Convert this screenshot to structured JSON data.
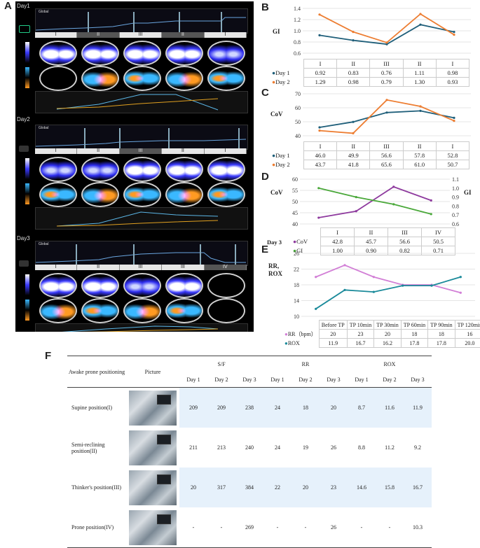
{
  "letters": {
    "a": "A",
    "b": "B",
    "c": "C",
    "d": "D",
    "e": "E",
    "f": "F"
  },
  "panelA": {
    "days": [
      "Day1",
      "Day2",
      "Day3"
    ],
    "global_label": "Global",
    "roi_days12": [
      "I",
      "II",
      "III",
      "II",
      "I"
    ],
    "roi_day3": [
      "I",
      "II",
      "III",
      "III",
      "IV"
    ]
  },
  "chart_data": [
    {
      "id": "B",
      "type": "line",
      "ylabel": "GI",
      "categories": [
        "I",
        "II",
        "III",
        "II",
        "I"
      ],
      "ylim": [
        0.6,
        1.4
      ],
      "yticks": [
        "0.6",
        "0.8",
        "1.0",
        "1.2",
        "1.4"
      ],
      "series": [
        {
          "name": "Day 1",
          "color": "#1f5f7a",
          "values": [
            0.92,
            0.83,
            0.76,
            1.11,
            0.98
          ],
          "labels": [
            "0.92",
            "0.83",
            "0.76",
            "1.11",
            "0.98"
          ]
        },
        {
          "name": "Day 2",
          "color": "#ed7d31",
          "values": [
            1.29,
            0.98,
            0.79,
            1.3,
            0.93
          ],
          "labels": [
            "1.29",
            "0.98",
            "0.79",
            "1.30",
            "0.93"
          ]
        }
      ]
    },
    {
      "id": "C",
      "type": "line",
      "ylabel": "CoV",
      "categories": [
        "I",
        "II",
        "III",
        "II",
        "I"
      ],
      "ylim": [
        40,
        70
      ],
      "yticks": [
        "40",
        "50",
        "60",
        "70"
      ],
      "series": [
        {
          "name": "Day 1",
          "color": "#1f5f7a",
          "values": [
            46.0,
            49.9,
            56.6,
            57.8,
            52.8
          ],
          "labels": [
            "46.0",
            "49.9",
            "56.6",
            "57.8",
            "52.8"
          ]
        },
        {
          "name": "Day 2",
          "color": "#ed7d31",
          "values": [
            43.7,
            41.8,
            65.6,
            61.0,
            50.7
          ],
          "labels": [
            "43.7",
            "41.8",
            "65.6",
            "61.0",
            "50.7"
          ]
        }
      ]
    },
    {
      "id": "D",
      "type": "line",
      "ylabel": "CoV",
      "ylabel_right": "GI",
      "day_label": "Day 3",
      "categories": [
        "I",
        "II",
        "III",
        "IV"
      ],
      "ylim": [
        40,
        60
      ],
      "yticks": [
        "40",
        "45",
        "50",
        "55",
        "60"
      ],
      "ylim_right": [
        0.6,
        1.1
      ],
      "yticks_right": [
        "0.6",
        "0.7",
        "0.8",
        "0.9",
        "1.0",
        "1.1"
      ],
      "series": [
        {
          "name": "CoV",
          "color": "#8e3a9e",
          "axis": "left",
          "values": [
            42.8,
            45.7,
            56.6,
            50.5
          ],
          "labels": [
            "42.8",
            "45.7",
            "56.6",
            "50.5"
          ]
        },
        {
          "name": "GI",
          "color": "#4aa83a",
          "axis": "right",
          "values": [
            1.0,
            0.9,
            0.82,
            0.71
          ],
          "labels": [
            "1.00",
            "0.90",
            "0.82",
            "0.71"
          ]
        }
      ]
    },
    {
      "id": "E",
      "type": "line",
      "ylabel": "RR,",
      "ylabel2": "ROX",
      "categories": [
        "Before TP",
        "TP 10min",
        "TP 30min",
        "TP 60min",
        "TP 90min",
        "TP 120min"
      ],
      "ylim": [
        10,
        26
      ],
      "yticks": [
        "10",
        "14",
        "18",
        "22",
        "26"
      ],
      "series": [
        {
          "name": "RR（bpm）",
          "color": "#d27fd6",
          "values": [
            20,
            23,
            20,
            18,
            18,
            16
          ],
          "labels": [
            "20",
            "23",
            "20",
            "18",
            "18",
            "16"
          ]
        },
        {
          "name": "ROX",
          "color": "#1a8a9a",
          "values": [
            11.9,
            16.7,
            16.2,
            17.8,
            17.8,
            20.0
          ],
          "labels": [
            "11.9",
            "16.7",
            "16.2",
            "17.8",
            "17.8",
            "20.0"
          ]
        }
      ]
    },
    {
      "id": "F",
      "type": "table",
      "col_heads": {
        "position": "Awake prone positioning",
        "picture": "Picture",
        "sf": "S/F",
        "rr": "RR",
        "rox": "ROX"
      },
      "days": [
        "Day 1",
        "Day 2",
        "Day 3",
        "Day 1",
        "Day 2",
        "Day 3",
        "Day 1",
        "Day 2",
        "Day 3"
      ],
      "rows": [
        {
          "position": "Supine position(I)",
          "values": [
            "209",
            "209",
            "238",
            "24",
            "18",
            "20",
            "8.7",
            "11.6",
            "11.9"
          ]
        },
        {
          "position": "Semi-reclining position(II)",
          "values": [
            "211",
            "213",
            "240",
            "24",
            "19",
            "26",
            "8.8",
            "11.2",
            "9.2"
          ]
        },
        {
          "position": "Thinker's position(III)",
          "values": [
            "20",
            "317",
            "384",
            "22",
            "20",
            "23",
            "14.6",
            "15.8",
            "16.7"
          ]
        },
        {
          "position": "Prone position(IV)",
          "values": [
            "-",
            "-",
            "269",
            "-",
            "-",
            "26",
            "-",
            "-",
            "10.3"
          ]
        }
      ]
    }
  ]
}
